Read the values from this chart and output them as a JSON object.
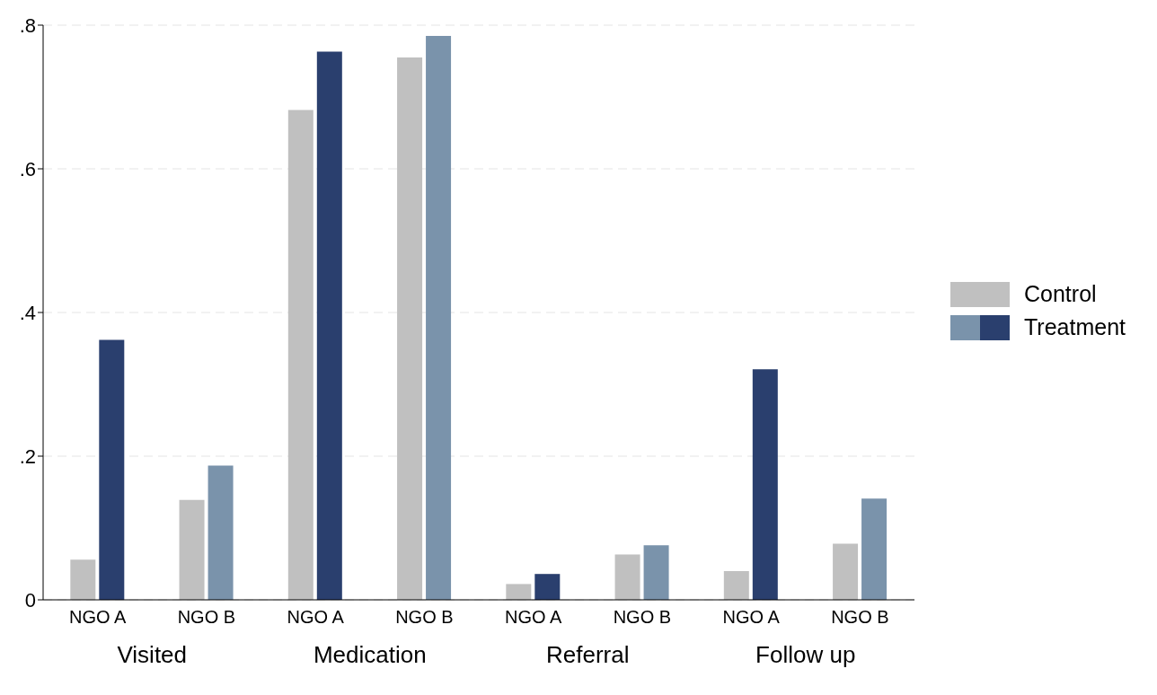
{
  "chart_data": {
    "type": "bar",
    "categories": [
      "NGO A",
      "NGO B",
      "NGO A",
      "NGO B",
      "NGO A",
      "NGO B",
      "NGO A",
      "NGO B"
    ],
    "series": [
      {
        "name": "Control",
        "color": "#c0c0c0",
        "values": [
          0.056,
          0.139,
          0.682,
          0.755,
          0.022,
          0.063,
          0.04,
          0.078
        ]
      },
      {
        "name": "Treatment",
        "colors": [
          "#2a3f6e",
          "#7a93ab",
          "#2a3f6e",
          "#7a93ab",
          "#2a3f6e",
          "#7a93ab",
          "#2a3f6e",
          "#7a93ab"
        ],
        "values": [
          0.362,
          0.187,
          0.763,
          0.785,
          0.036,
          0.076,
          0.321,
          0.141
        ]
      }
    ],
    "annotations": [
      "Visited",
      "Medication",
      "Referral",
      "Follow up"
    ],
    "ylim": [
      0,
      0.8
    ],
    "yticks": [
      {
        "value": 0,
        "label": "0"
      },
      {
        "value": 0.2,
        "label": ".2"
      },
      {
        "value": 0.4,
        "label": ".4"
      },
      {
        "value": 0.6,
        "label": ".6"
      },
      {
        "value": 0.8,
        "label": ".8"
      }
    ],
    "grid": "y",
    "legend": "right"
  }
}
